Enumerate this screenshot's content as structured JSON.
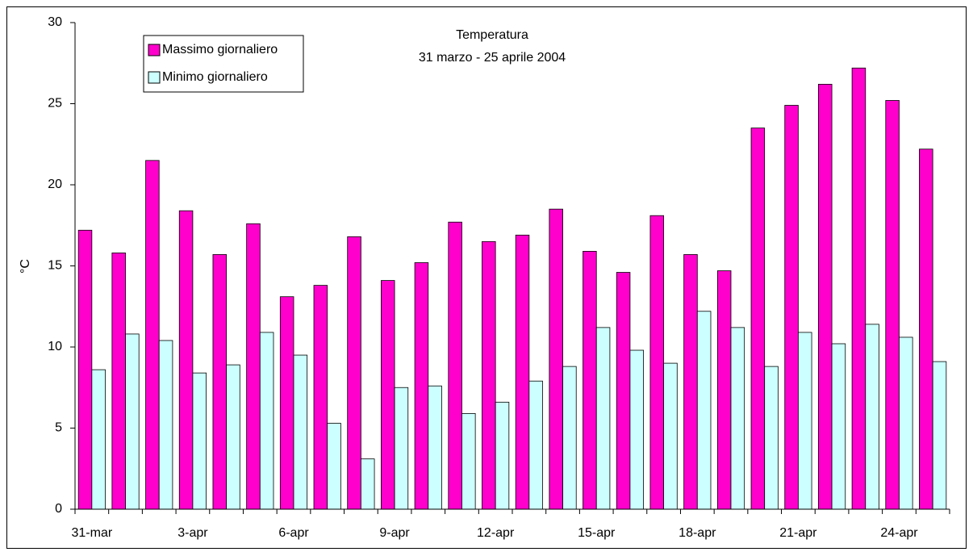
{
  "chart_data": {
    "type": "bar",
    "title": "Temperatura",
    "subtitle": "31 marzo - 25 aprile 2004",
    "y_label": "°C",
    "categories": [
      "31-mar",
      null,
      null,
      "3-apr",
      null,
      null,
      "6-apr",
      null,
      null,
      "9-apr",
      null,
      null,
      "12-apr",
      null,
      null,
      "15-apr",
      null,
      null,
      "18-apr",
      null,
      null,
      "21-apr",
      null,
      null,
      "24-apr",
      null
    ],
    "series": [
      {
        "name": "Massimo giornaliero",
        "color": "#ff00cc",
        "values": [
          17.2,
          15.8,
          21.5,
          18.4,
          15.7,
          17.6,
          13.1,
          13.8,
          16.8,
          14.1,
          15.2,
          17.7,
          16.5,
          16.9,
          18.5,
          15.9,
          14.6,
          18.1,
          15.7,
          14.7,
          23.5,
          24.9,
          26.2,
          27.2,
          25.2,
          22.2
        ]
      },
      {
        "name": "Minimo giornaliero",
        "color": "#ccffff",
        "values": [
          8.6,
          10.8,
          10.4,
          8.4,
          8.9,
          10.9,
          9.5,
          5.3,
          3.1,
          7.5,
          7.6,
          5.9,
          6.6,
          7.9,
          8.8,
          11.2,
          9.8,
          9.0,
          12.2,
          11.2,
          8.8,
          10.9,
          10.2,
          11.4,
          10.6,
          9.1
        ]
      }
    ],
    "ylim": [
      0,
      30
    ],
    "yticks": [
      0,
      5,
      10,
      15,
      20,
      25,
      30
    ],
    "legend": "top-left"
  }
}
